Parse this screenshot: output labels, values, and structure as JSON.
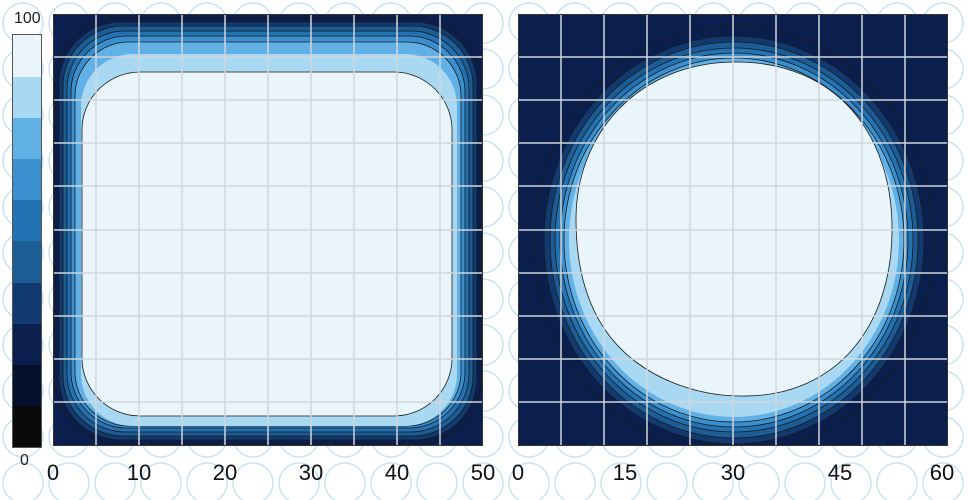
{
  "chart_data": [
    {
      "type": "heatmap",
      "shape": "rounded-square",
      "x_ticks": [
        "0",
        "10",
        "20",
        "30",
        "40",
        "50"
      ],
      "xlim": [
        0,
        50
      ],
      "ylim": [
        0,
        50
      ],
      "grid": true,
      "levels": [
        0,
        10,
        20,
        30,
        40,
        50,
        60,
        70,
        80,
        90,
        100
      ],
      "interior_value": 100
    },
    {
      "type": "heatmap",
      "shape": "circle",
      "x_ticks": [
        "0",
        "15",
        "30",
        "45",
        "60"
      ],
      "xlim": [
        0,
        60
      ],
      "ylim": [
        0,
        60
      ],
      "grid": true,
      "levels": [
        0,
        10,
        20,
        30,
        40,
        50,
        60,
        70,
        80,
        90,
        100
      ],
      "interior_value": 100
    }
  ],
  "colorbar": {
    "min_label": "0",
    "max_label": "100",
    "colors": [
      "#0a0a0a",
      "#06112e",
      "#0b1f4e",
      "#123a72",
      "#1b5d94",
      "#2272b4",
      "#3a8fcf",
      "#62b1e6",
      "#a9d8f3",
      "#e9f4fb"
    ]
  }
}
